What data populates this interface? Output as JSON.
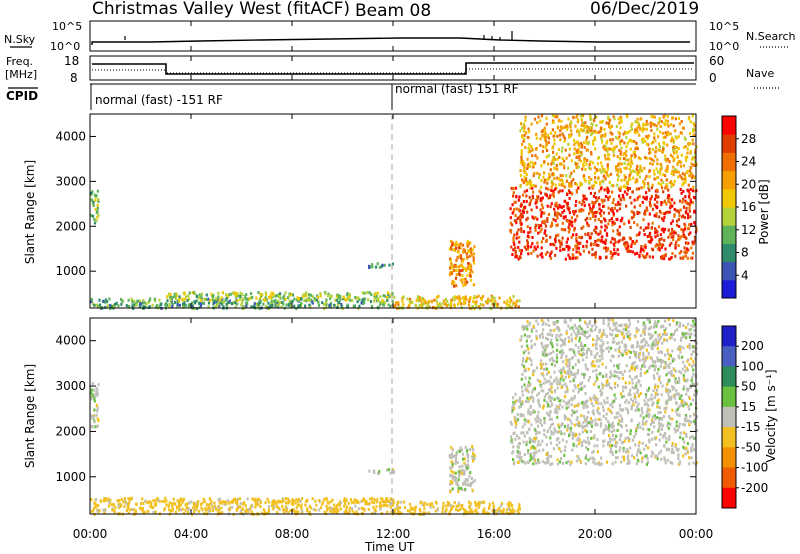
{
  "header": {
    "station": "Christmas Valley West (fitACF)",
    "beam": "Beam 08",
    "date": "06/Dec/2019"
  },
  "summary_panels": {
    "nsky_label": "N.Sky",
    "nsearch_label": "N.Search",
    "left_ticks": [
      "10^5",
      "10^0"
    ],
    "right_ticks": [
      "10^5",
      "10^0"
    ],
    "freq_label": [
      "Freq.",
      "[MHz]"
    ],
    "freq_ticks": [
      18,
      8
    ],
    "nave_label": "Nave",
    "nave_ticks": [
      60,
      0
    ],
    "cpid_label": "CPID",
    "cpid_segments": [
      {
        "start_hour": 0,
        "end_hour": 12,
        "text": "normal (fast) -151 RF"
      },
      {
        "start_hour": 12,
        "end_hour": 24,
        "text": "normal (fast) 151 RF"
      }
    ]
  },
  "time_axis": {
    "label": "Time UT",
    "ticks": [
      "00:00",
      "04:00",
      "08:00",
      "12:00",
      "16:00",
      "20:00",
      "00:00"
    ]
  },
  "colors": {
    "power": [
      "#1c1cd8",
      "#3c54b4",
      "#2e8c6c",
      "#5fb45a",
      "#b4d23c",
      "#f0c800",
      "#f5a000",
      "#f06e00",
      "#e03c00",
      "#ff0000"
    ],
    "velocity": [
      "#2020c8",
      "#4a60c0",
      "#2e8c5a",
      "#6ac040",
      "#c0c0b8",
      "#f2c020",
      "#f29000",
      "#f05a00",
      "#ff0000"
    ],
    "ground_scatter": "#c0c0b8"
  },
  "chart_data": [
    {
      "type": "heatmap",
      "title": "Power",
      "xlabel": "Time UT",
      "ylabel": "Slant Range [km]",
      "xlim": [
        0,
        24
      ],
      "ylim": [
        180,
        4500
      ],
      "yticks": [
        1000,
        2000,
        3000,
        4000
      ],
      "colorbar": {
        "label": "Power [dB]",
        "range": [
          0,
          32
        ],
        "ticks": [
          4,
          8,
          12,
          16,
          20,
          24,
          28
        ]
      },
      "series": [
        {
          "name": "",
          "regions": [
            {
              "t0": 0.0,
              "t1": 0.3,
              "r0": 2100,
              "r1": 2900,
              "value": 12
            },
            {
              "t0": 0.0,
              "t1": 12.0,
              "r0": 200,
              "r1": 420,
              "value": 10
            },
            {
              "t0": 3.0,
              "t1": 12.0,
              "r0": 380,
              "r1": 560,
              "value": 14
            },
            {
              "t0": 11.0,
              "t1": 12.0,
              "r0": 1100,
              "r1": 1200,
              "value": 8
            },
            {
              "t0": 12.0,
              "t1": 17.0,
              "r0": 200,
              "r1": 480,
              "value": 18
            },
            {
              "t0": 14.2,
              "t1": 15.2,
              "r0": 700,
              "r1": 1700,
              "value": 22
            },
            {
              "t0": 16.6,
              "t1": 24.0,
              "r0": 1300,
              "r1": 2900,
              "value": 28
            },
            {
              "t0": 17.0,
              "t1": 24.0,
              "r0": 2900,
              "r1": 4500,
              "value": 20
            }
          ]
        }
      ]
    },
    {
      "type": "heatmap",
      "title": "Velocity",
      "xlabel": "Time UT",
      "ylabel": "Slant Range [km]",
      "xlim": [
        0,
        24
      ],
      "ylim": [
        180,
        4500
      ],
      "yticks": [
        1000,
        2000,
        3000,
        4000
      ],
      "colorbar": {
        "label": "Velocity [m s⁻¹]",
        "range": [
          -250,
          250
        ],
        "ticks": [
          200,
          100,
          50,
          15,
          -15,
          -50,
          -100,
          -200
        ]
      },
      "series": [
        {
          "name": "",
          "regions": [
            {
              "t0": 0.0,
              "t1": 0.3,
              "r0": 2100,
              "r1": 3100,
              "value": 0
            },
            {
              "t0": 0.0,
              "t1": 12.0,
              "r0": 200,
              "r1": 560,
              "value": -30
            },
            {
              "t0": 11.0,
              "t1": 12.0,
              "r0": 1100,
              "r1": 1200,
              "value": 0
            },
            {
              "t0": 12.0,
              "t1": 17.0,
              "r0": 200,
              "r1": 480,
              "value": -30
            },
            {
              "t0": 14.2,
              "t1": 15.2,
              "r0": 700,
              "r1": 1700,
              "value": 0
            },
            {
              "t0": 16.6,
              "t1": 24.0,
              "r0": 1300,
              "r1": 2900,
              "value": 0
            },
            {
              "t0": 17.0,
              "t1": 24.0,
              "r0": 2900,
              "r1": 4500,
              "value": 0
            }
          ]
        }
      ]
    }
  ]
}
